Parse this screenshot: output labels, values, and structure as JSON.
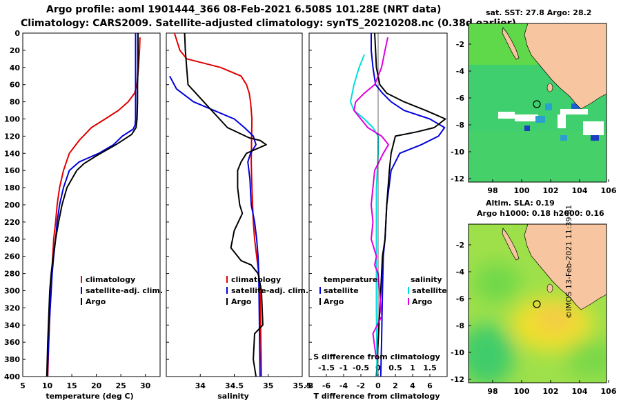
{
  "titles": {
    "line1": "Argo profile: aoml 1901444_366 08-Feb-2021 6.508S 101.28E (NRT data)",
    "line2": "Climatology: CARS2009. Satellite-adjusted climatology: synTS_20210208.nc (0.38d earlier)"
  },
  "colors": {
    "climatology": "#e00000",
    "satellite": "#0000dd",
    "argo": "#000000",
    "s_sat": "#00dddd",
    "s_argo": "#dd00dd"
  },
  "chart_data": [
    {
      "type": "line",
      "id": "temperature",
      "xlabel": "temperature (deg C)",
      "ylabel": "",
      "xlim": [
        5,
        33
      ],
      "ylim": [
        400,
        0
      ],
      "xticks": [
        5,
        10,
        15,
        20,
        25,
        30
      ],
      "yticks": [
        0,
        20,
        40,
        60,
        80,
        100,
        120,
        140,
        160,
        180,
        200,
        220,
        240,
        260,
        280,
        300,
        320,
        340,
        360,
        380,
        400
      ],
      "legend": [
        "climatology",
        "satellite-adj. clim.",
        "Argo"
      ],
      "series": [
        {
          "name": "climatology",
          "color": "#e00000",
          "x": [
            28.9,
            28.8,
            28.6,
            28.3,
            27.8,
            26.5,
            24.5,
            21.8,
            19.0,
            16.5,
            14.5,
            13.3,
            12.5,
            12.0,
            11.7,
            11.3,
            11.1,
            10.9,
            10.7,
            10.5,
            10.3,
            10.1
          ],
          "depth": [
            5,
            20,
            40,
            60,
            70,
            80,
            90,
            100,
            110,
            125,
            140,
            160,
            180,
            200,
            220,
            240,
            260,
            280,
            300,
            330,
            360,
            400
          ]
        },
        {
          "name": "satellite-adj. clim.",
          "color": "#0000dd",
          "x": [
            28.0,
            28.0,
            28.0,
            28.0,
            28.0,
            28.0,
            27.9,
            27.5,
            25.3,
            23.5,
            20.5,
            16.5,
            14.5,
            13.3,
            12.5,
            12.0,
            11.7,
            11.3,
            11.0,
            10.7,
            10.4,
            10.2,
            10.0
          ],
          "depth": [
            0,
            20,
            40,
            60,
            80,
            100,
            107,
            112,
            120,
            130,
            140,
            150,
            160,
            180,
            200,
            220,
            240,
            260,
            280,
            310,
            340,
            370,
            400
          ]
        },
        {
          "name": "Argo",
          "color": "#000000",
          "x": [
            28.5,
            28.5,
            28.5,
            28.4,
            28.4,
            28.3,
            28.1,
            27.2,
            24.0,
            20.0,
            17.5,
            16.0,
            15.0,
            14.0,
            13.0,
            12.3,
            11.7,
            11.2,
            10.8,
            10.5,
            10.1,
            10.0,
            9.9
          ],
          "depth": [
            0,
            20,
            40,
            60,
            80,
            100,
            110,
            118,
            130,
            143,
            152,
            160,
            170,
            180,
            200,
            220,
            240,
            260,
            280,
            300,
            360,
            380,
            400
          ]
        }
      ]
    },
    {
      "type": "line",
      "id": "salinity",
      "xlabel": "salinity",
      "ylabel": "",
      "xlim": [
        33.5,
        35.5
      ],
      "ylim": [
        400,
        0
      ],
      "xticks": [
        34,
        34.5,
        35,
        35.5
      ],
      "legend": [
        "climatology",
        "satellite-adj. clim.",
        "Argo"
      ],
      "series": [
        {
          "name": "climatology",
          "color": "#e00000",
          "x": [
            33.62,
            33.7,
            33.8,
            34.3,
            34.6,
            34.68,
            34.72,
            34.74,
            34.75,
            34.76,
            34.75,
            34.76,
            34.77,
            34.78,
            34.8,
            34.83,
            34.86,
            34.88,
            34.9
          ],
          "depth": [
            0,
            20,
            30,
            40,
            50,
            60,
            70,
            80,
            90,
            100,
            150,
            180,
            200,
            220,
            240,
            260,
            280,
            300,
            400
          ]
        },
        {
          "name": "satellite-adj. clim.",
          "color": "#0000dd",
          "x": [
            33.55,
            33.65,
            33.9,
            34.2,
            34.5,
            34.65,
            34.78,
            34.82,
            34.74,
            34.7,
            34.73,
            34.75,
            34.8,
            34.83,
            34.85,
            34.86,
            34.88
          ],
          "depth": [
            50,
            65,
            80,
            90,
            100,
            110,
            120,
            130,
            140,
            150,
            170,
            200,
            220,
            240,
            260,
            280,
            400
          ]
        },
        {
          "name": "Argo",
          "color": "#000000",
          "x": [
            33.77,
            33.78,
            33.8,
            33.82,
            34.05,
            34.4,
            34.72,
            34.88,
            34.97,
            34.68,
            34.6,
            34.55,
            34.55,
            34.58,
            34.62,
            34.5,
            34.45,
            34.6,
            34.75,
            34.85,
            34.9,
            34.92,
            34.8,
            34.78,
            34.82
          ],
          "depth": [
            0,
            20,
            40,
            60,
            80,
            110,
            122,
            125,
            130,
            140,
            150,
            160,
            180,
            200,
            210,
            230,
            250,
            265,
            270,
            280,
            300,
            340,
            350,
            380,
            400
          ]
        }
      ]
    },
    {
      "type": "line",
      "id": "difference",
      "xlabel": "T difference from climatology",
      "xlabel2": "S difference from climatology",
      "xlim_T": [
        -8,
        8
      ],
      "xticks_T": [
        -8,
        -6,
        -4,
        -2,
        0,
        2,
        4,
        6
      ],
      "xlim_S": [
        -2,
        2
      ],
      "xticks_S": [
        -1.5,
        -1,
        -0.5,
        0,
        0.5,
        1,
        1.5
      ],
      "ylim": [
        400,
        0
      ],
      "legend_T": [
        "temperature",
        "satellite",
        "Argo"
      ],
      "legend_S": [
        "salinity",
        "satellite",
        "Argo"
      ],
      "series": [
        {
          "name": "T satellite",
          "color": "#0000dd",
          "x": [
            -0.8,
            -0.8,
            -0.6,
            -0.3,
            0.5,
            1.5,
            3.0,
            6.0,
            7.7,
            7.0,
            5.0,
            2.5,
            1.5,
            1.0,
            0.8,
            0.6,
            0.5,
            0.4,
            0.3
          ],
          "depth": [
            0,
            20,
            40,
            60,
            70,
            80,
            90,
            100,
            110,
            120,
            130,
            140,
            160,
            200,
            240,
            260,
            300,
            360,
            400
          ]
        },
        {
          "name": "T Argo",
          "color": "#000000",
          "x": [
            -0.4,
            -0.3,
            -0.2,
            0.2,
            1.0,
            3.0,
            5.5,
            7.8,
            6.5,
            4.5,
            2.0,
            1.5,
            1.3,
            1.0,
            0.8,
            0.5,
            0.3,
            0.0,
            -0.2
          ],
          "depth": [
            0,
            20,
            40,
            60,
            70,
            80,
            90,
            100,
            110,
            115,
            120,
            140,
            160,
            200,
            240,
            260,
            300,
            360,
            400
          ]
        },
        {
          "name": "S satellite",
          "color": "#00dddd",
          "x": [
            -0.4,
            -0.55,
            -0.7,
            -0.8,
            -0.7,
            -0.4,
            -0.15,
            0.0,
            0.0,
            -0.05,
            -0.05,
            -0.05,
            -0.03
          ],
          "depth": [
            25,
            40,
            60,
            80,
            90,
            100,
            110,
            120,
            140,
            180,
            240,
            320,
            400
          ]
        },
        {
          "name": "S Argo",
          "color": "#dd00dd",
          "x": [
            0.28,
            0.2,
            0.1,
            -0.1,
            -0.4,
            -0.65,
            -0.7,
            -0.5,
            -0.3,
            -0.1,
            0.1,
            0.3,
            0.15,
            -0.1,
            -0.2,
            -0.15,
            -0.2,
            -0.05,
            -0.1,
            0.0,
            0.1,
            -0.15,
            -0.05
          ],
          "depth": [
            5,
            20,
            40,
            60,
            70,
            80,
            90,
            100,
            110,
            115,
            120,
            130,
            140,
            160,
            200,
            220,
            240,
            260,
            270,
            280,
            330,
            350,
            380
          ]
        }
      ]
    }
  ],
  "maps": {
    "sst": {
      "title": "sat. SST: 27.8 Argo: 28.2",
      "xticks": [
        "98",
        "100",
        "102",
        "104",
        "106"
      ],
      "yticks": [
        "-2",
        "-4",
        "-6",
        "-8",
        "-10",
        "-12"
      ]
    },
    "sla": {
      "title1": "Altim. SLA: 0.19",
      "title2": "Argo h1000: 0.18 h2000: 0.16",
      "xticks": [
        "98",
        "100",
        "102",
        "104",
        "106"
      ],
      "yticks": [
        "-2",
        "-4",
        "-6",
        "-8",
        "-10",
        "-12"
      ]
    }
  },
  "credit": "©IMOS 13-Feb-2021 11:39:51"
}
